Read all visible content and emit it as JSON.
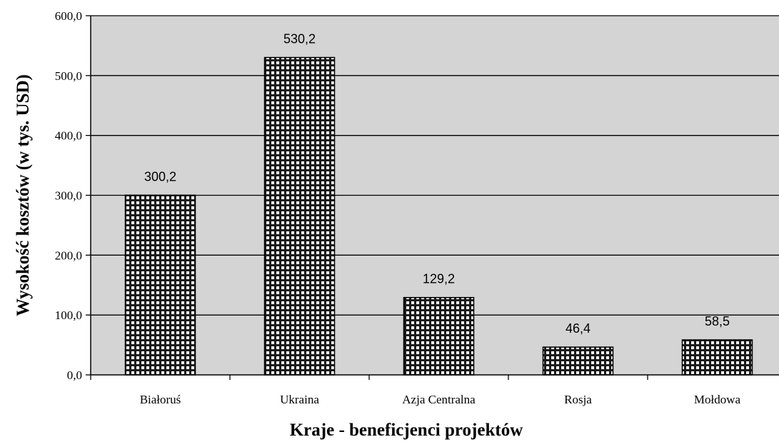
{
  "chart_data": {
    "type": "bar",
    "title": "",
    "xlabel": "Kraje - beneficjenci projektów",
    "ylabel": "Wysokość kosztów (w tys. USD)",
    "categories": [
      "Białoruś",
      "Ukraina",
      "Azja Centralna",
      "Rosja",
      "Mołdowa"
    ],
    "values": [
      300.2,
      530.2,
      129.2,
      46.4,
      58.5
    ],
    "data_labels": [
      "300,2",
      "530,2",
      "129,2",
      "46,4",
      "58,5"
    ],
    "ylim": [
      0,
      600
    ],
    "yticks": [
      0,
      100,
      200,
      300,
      400,
      500,
      600
    ],
    "ytick_labels": [
      "0,0",
      "100,0",
      "200,0",
      "300,0",
      "400,0",
      "500,0",
      "600,0"
    ],
    "grid": true,
    "legend": "none",
    "colors": {
      "plot_background": "#d4d4d4",
      "bar_pattern_light": "#ffffff",
      "bar_pattern_dark": "#1a1a1a",
      "gridline": "#000000"
    }
  }
}
